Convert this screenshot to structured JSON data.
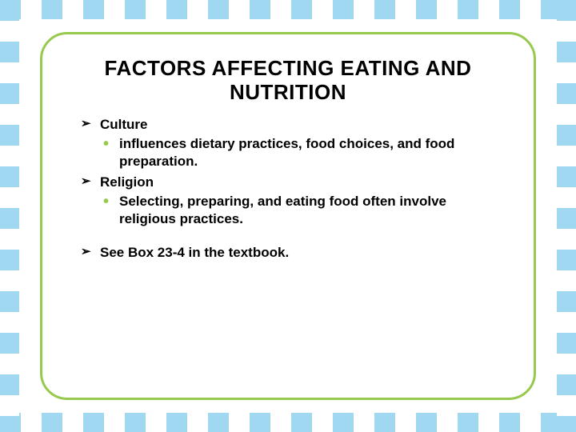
{
  "slide": {
    "title": "FACTORS AFFECTING EATING AND NUTRITION",
    "items": [
      {
        "label": "Culture",
        "sub": [
          "influences dietary practices, food choices, and food preparation."
        ]
      },
      {
        "label": "Religion",
        "sub": [
          "Selecting, preparing, and eating food often involve religious practices."
        ]
      }
    ],
    "footnote": "See Box 23-4 in the textbook."
  },
  "colors": {
    "stripe": "#9fd8f0",
    "panel_border": "#97c94e",
    "bullet_sub": "#97c94e",
    "text": "#000000",
    "background": "#ffffff"
  }
}
